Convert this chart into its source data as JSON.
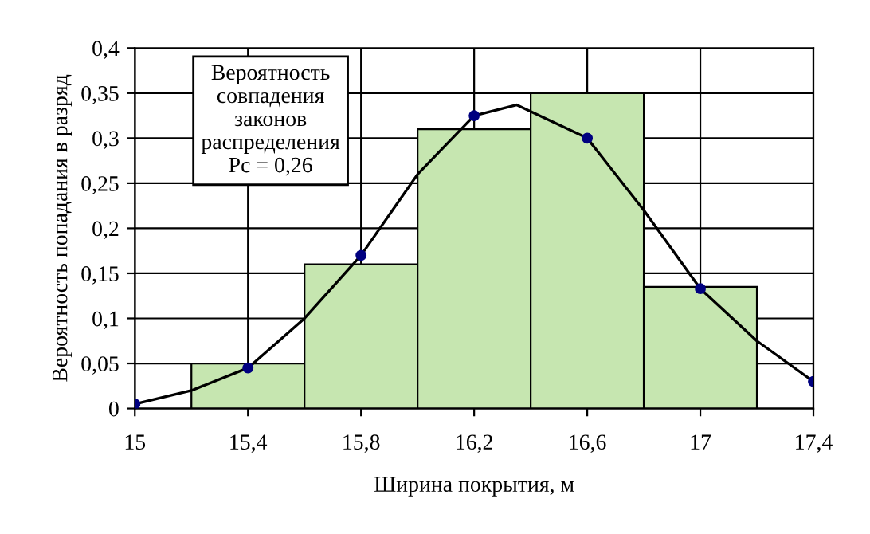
{
  "chart_data": {
    "type": "histogram",
    "xlabel": "Ширина покрытия, м",
    "ylabel": "Вероятность попадания в разряд",
    "bins": [
      15.2,
      15.6,
      16.0,
      16.4,
      16.8,
      17.2
    ],
    "values": [
      0.05,
      0.16,
      0.31,
      0.35,
      0.135
    ],
    "color": "#c6e6b0",
    "series": [
      {
        "type": "line",
        "x": [
          15,
          15.2,
          15.4,
          15.6,
          15.8,
          16.0,
          16.2,
          16.35,
          16.6,
          16.8,
          17,
          17.2,
          17.4
        ],
        "values": [
          0.005,
          0.02,
          0.045,
          0.1,
          0.17,
          0.26,
          0.325,
          0.337,
          0.3,
          0.22,
          0.133,
          0.075,
          0.03
        ],
        "color": "#000000"
      },
      {
        "type": "scatter",
        "x": [
          15,
          15.4,
          15.8,
          16.2,
          16.6,
          17,
          17.4
        ],
        "values": [
          0.005,
          0.045,
          0.17,
          0.325,
          0.3,
          0.133,
          0.03
        ],
        "color": "#000080",
        "marker": "circle"
      }
    ],
    "xlim": [
      15,
      17.4
    ],
    "ylim": [
      0,
      0.4
    ],
    "xticks": [
      15,
      {
        "value": 15.4,
        "label": "15,4"
      },
      {
        "value": 15.8,
        "label": "15,8"
      },
      {
        "value": 16.2,
        "label": "16,2"
      },
      {
        "value": 16.6,
        "label": "16,6"
      },
      17,
      {
        "value": 17.4,
        "label": "17,4"
      }
    ],
    "yticks": [
      0,
      {
        "value": 0.05,
        "label": "0,05"
      },
      {
        "value": 0.1,
        "label": "0,1"
      },
      {
        "value": 0.15,
        "label": "0,15"
      },
      {
        "value": 0.2,
        "label": "0,2"
      },
      {
        "value": 0.25,
        "label": "0,25"
      },
      {
        "value": 0.3,
        "label": "0,3"
      },
      {
        "value": 0.35,
        "label": "0,35"
      },
      {
        "value": 0.4,
        "label": "0,4"
      }
    ],
    "grid": true,
    "annotations": [
      "Вероятность\nсовпадения\nзаконов\nраспределения\nPc = 0,26"
    ]
  }
}
